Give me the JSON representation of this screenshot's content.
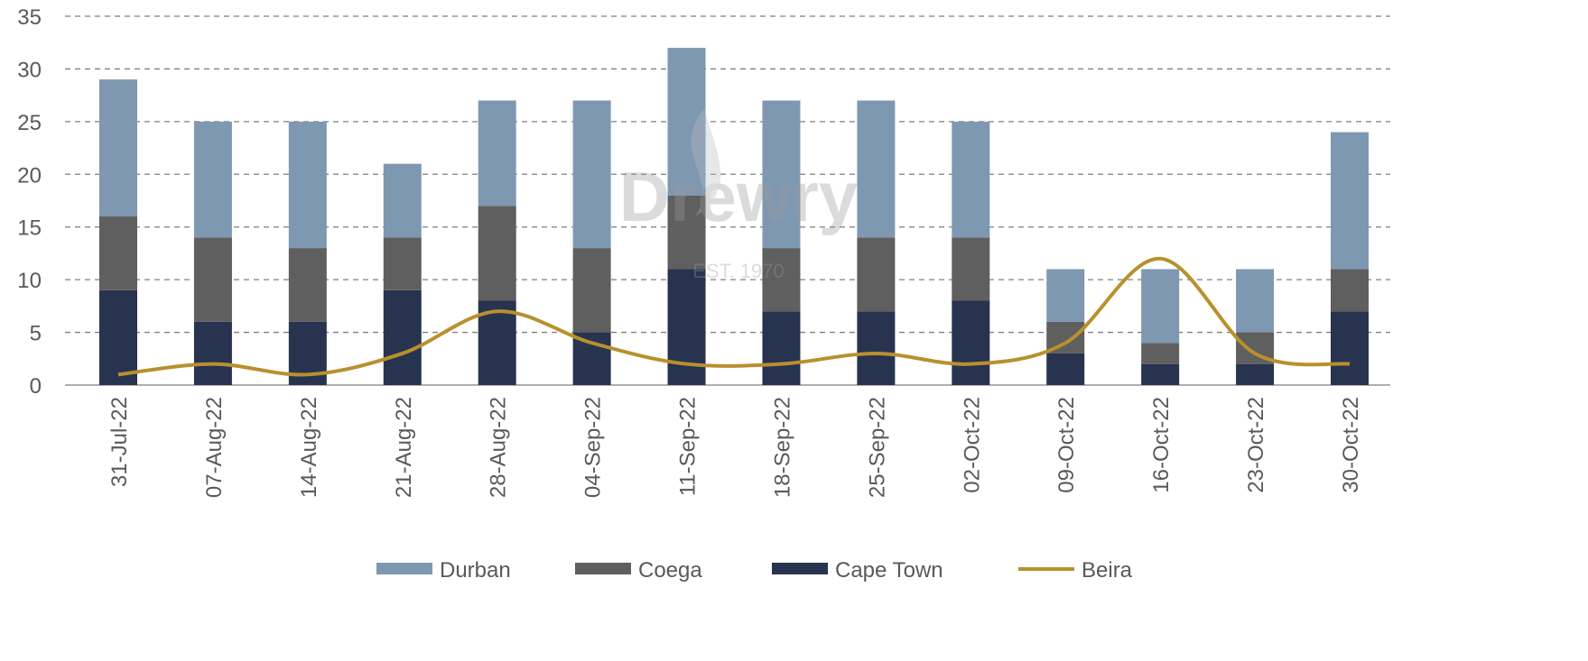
{
  "chart_data": {
    "type": "bar",
    "stacked": true,
    "title": "",
    "xlabel": "",
    "ylabel": "",
    "ylim": [
      0,
      35
    ],
    "yticks": [
      0,
      5,
      10,
      15,
      20,
      25,
      30,
      35
    ],
    "grid": true,
    "legend_position": "bottom",
    "watermark": {
      "brand": "Drewry",
      "tagline": "EST. 1970"
    },
    "categories": [
      "31-Jul-22",
      "07-Aug-22",
      "14-Aug-22",
      "21-Aug-22",
      "28-Aug-22",
      "04-Sep-22",
      "11-Sep-22",
      "18-Sep-22",
      "25-Sep-22",
      "02-Oct-22",
      "09-Oct-22",
      "16-Oct-22",
      "23-Oct-22",
      "30-Oct-22"
    ],
    "series": [
      {
        "name": "Cape Town",
        "type": "bar",
        "color": "#283350",
        "values": [
          9,
          6,
          6,
          9,
          8,
          5,
          11,
          7,
          7,
          8,
          3,
          2,
          2,
          7
        ]
      },
      {
        "name": "Coega",
        "type": "bar",
        "color": "#5f5f5f",
        "values": [
          7,
          8,
          7,
          5,
          9,
          8,
          7,
          6,
          7,
          6,
          3,
          2,
          3,
          4
        ]
      },
      {
        "name": "Durban",
        "type": "bar",
        "color": "#7f98b2",
        "values": [
          13,
          11,
          12,
          7,
          10,
          14,
          14,
          14,
          13,
          11,
          5,
          7,
          6,
          13
        ]
      },
      {
        "name": "Beira",
        "type": "line",
        "smooth": true,
        "color": "#b8902e",
        "values": [
          1,
          2,
          1,
          3,
          7,
          4,
          2,
          2,
          3,
          2,
          4,
          12,
          3,
          2
        ]
      }
    ],
    "legend_order": [
      "Durban",
      "Coega",
      "Cape Town",
      "Beira"
    ]
  }
}
